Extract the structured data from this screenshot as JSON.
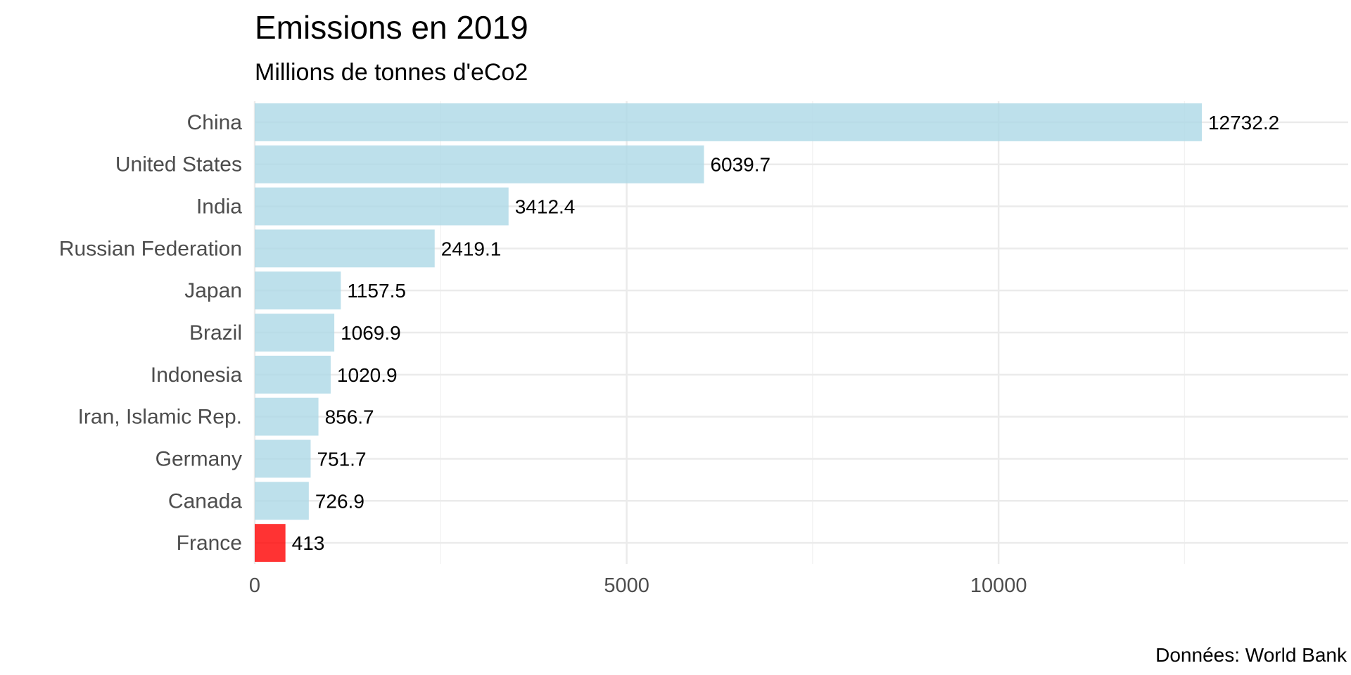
{
  "chart_data": {
    "type": "bar",
    "orientation": "horizontal",
    "title": "Emissions en 2019",
    "subtitle": "Millions de tonnes d'eCo2",
    "caption": "Données: World Bank",
    "categories": [
      "China",
      "United States",
      "India",
      "Russian Federation",
      "Japan",
      "Brazil",
      "Indonesia",
      "Iran, Islamic Rep.",
      "Germany",
      "Canada",
      "France"
    ],
    "values": [
      12732.2,
      6039.7,
      3412.4,
      2419.1,
      1157.5,
      1069.9,
      1020.9,
      856.7,
      751.7,
      726.9,
      413
    ],
    "value_labels": [
      "12732.2",
      "6039.7",
      "3412.4",
      "2419.1",
      "1157.5",
      "1069.9",
      "1020.9",
      "856.7",
      "751.7",
      "726.9",
      "413"
    ],
    "highlight": "France",
    "colors": {
      "default": "#add8e6",
      "highlight": "#ff0000"
    },
    "xlim": [
      0,
      14700
    ],
    "xticks": [
      0,
      5000,
      10000
    ],
    "xtick_labels": [
      "0",
      "5000",
      "10000"
    ],
    "grid": true,
    "legend": "none",
    "xlabel": "",
    "ylabel": ""
  }
}
